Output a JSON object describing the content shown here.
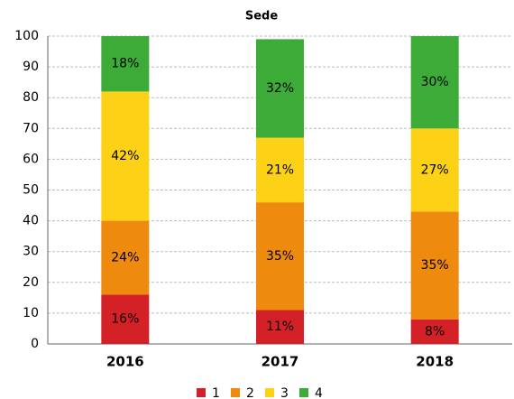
{
  "chart_data": {
    "type": "stacked_bar",
    "title": "Sede",
    "categories": [
      "2016",
      "2017",
      "2018"
    ],
    "series": [
      {
        "name": "1",
        "color": "#d42027",
        "values": [
          16,
          11,
          8
        ],
        "value_labels": [
          "16%",
          "11%",
          "8%"
        ]
      },
      {
        "name": "2",
        "color": "#ee8a0e",
        "values": [
          24,
          35,
          35
        ],
        "value_labels": [
          "24%",
          "35%",
          "35%"
        ]
      },
      {
        "name": "3",
        "color": "#fcd116",
        "values": [
          42,
          21,
          27
        ],
        "value_labels": [
          "42%",
          "21%",
          "27%"
        ]
      },
      {
        "name": "4",
        "color": "#3dab38",
        "values": [
          18,
          32,
          30
        ],
        "value_labels": [
          "18%",
          "32%",
          "30%"
        ]
      }
    ],
    "ylim": [
      0,
      100
    ],
    "yticks": [
      0,
      10,
      20,
      30,
      40,
      50,
      60,
      70,
      80,
      90,
      100
    ],
    "grid": true,
    "legend": "bottom"
  }
}
